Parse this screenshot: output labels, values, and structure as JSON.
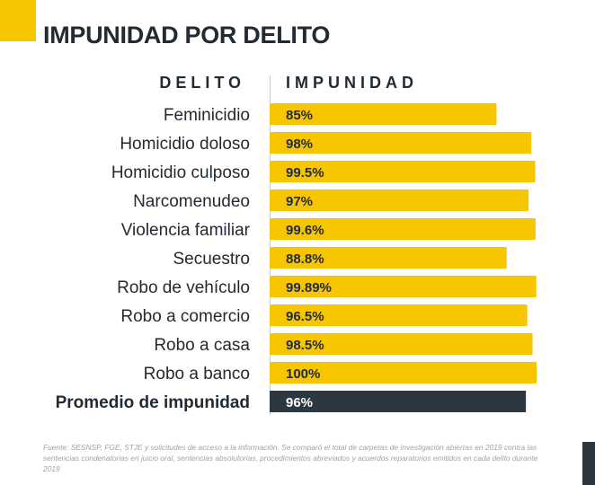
{
  "title": "IMPUNIDAD POR DELITO",
  "colors": {
    "accent": "#f7c600",
    "dark": "#2d3740",
    "text": "#222b33",
    "muted": "#9ea3a8"
  },
  "chart_data": {
    "type": "bar",
    "orientation": "horizontal",
    "header_category": "DELITO",
    "header_value": "IMPUNIDAD",
    "categories": [
      "Feminicidio",
      "Homicidio doloso",
      "Homicidio culposo",
      "Narcomenudeo",
      "Violencia familiar",
      "Secuestro",
      "Robo de vehículo",
      "Robo a comercio",
      "Robo a casa",
      "Robo a banco",
      "Promedio de impunidad"
    ],
    "values": [
      85,
      98,
      99.5,
      97,
      99.6,
      88.8,
      99.89,
      96.5,
      98.5,
      100,
      96
    ],
    "value_labels": [
      "85%",
      "98%",
      "99.5%",
      "97%",
      "99.6%",
      "88.8%",
      "99.89%",
      "96.5%",
      "98.5%",
      "100%",
      "96%"
    ],
    "highlight_index": 10,
    "xlim": [
      0,
      100
    ]
  },
  "footnote": "Fuente: SESNSP, FGE, STJE y solicitudes de acceso a la información. Se comparó el total de carpetas de investigación abiertas en 2019 contra las sentencias condenatorias en juicio oral, sentencias absolutorias, procedimientos abreviados y acuerdos reparatorios emitidos en cada delito durante 2019"
}
